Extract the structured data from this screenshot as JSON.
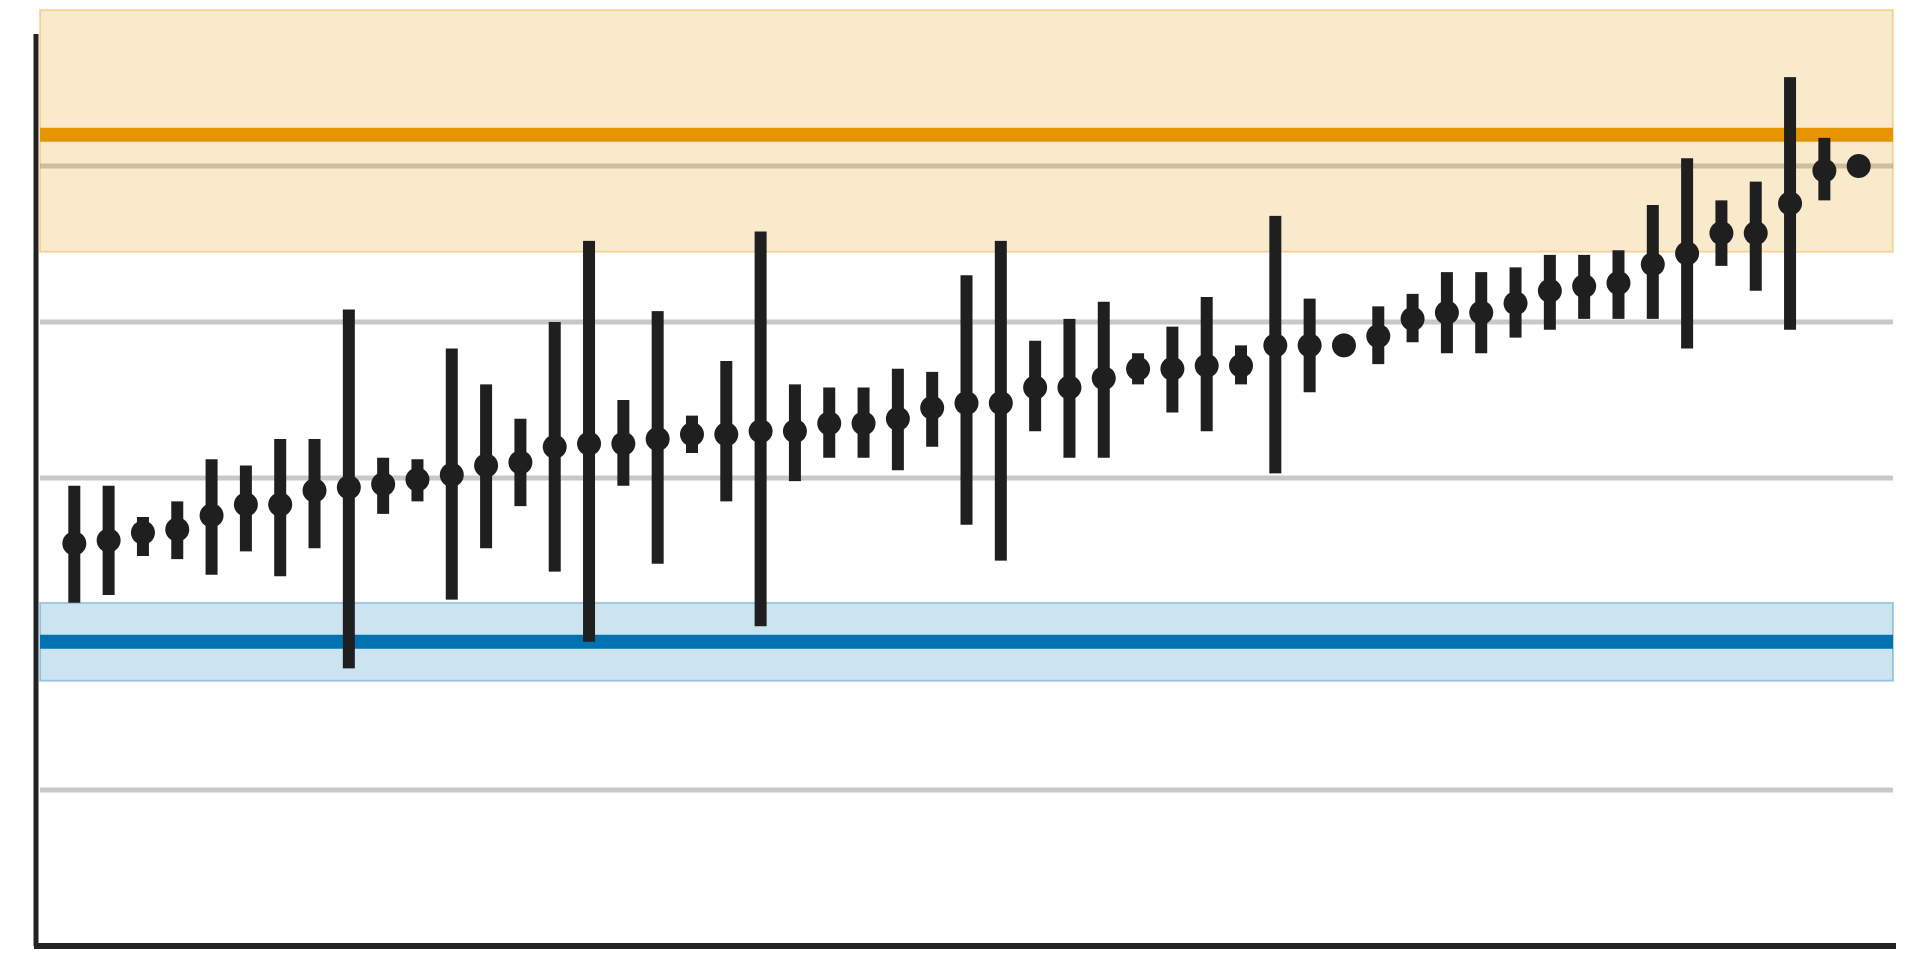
{
  "chart_data": {
    "type": "scatter",
    "title": "",
    "xlabel": "",
    "ylabel": "",
    "xlim": [
      0,
      54
    ],
    "ylim": [
      0,
      600
    ],
    "grid_y": [
      100,
      300,
      400,
      500
    ],
    "grid_on": true,
    "legend": "none",
    "reference_bands": [
      {
        "name": "",
        "color": "#e69500",
        "value": 520,
        "low": 445,
        "high": 600
      },
      {
        "name": "",
        "color": "#0072b2",
        "value": 195,
        "low": 170,
        "high": 220
      }
    ],
    "points": [
      {
        "x": 1,
        "y": 258,
        "low": 220,
        "high": 295
      },
      {
        "x": 2,
        "y": 260,
        "low": 225,
        "high": 295
      },
      {
        "x": 3,
        "y": 265,
        "low": 250,
        "high": 275
      },
      {
        "x": 4,
        "y": 267,
        "low": 248,
        "high": 285
      },
      {
        "x": 5,
        "y": 276,
        "low": 238,
        "high": 312
      },
      {
        "x": 6,
        "y": 283,
        "low": 253,
        "high": 308
      },
      {
        "x": 7,
        "y": 283,
        "low": 237,
        "high": 325
      },
      {
        "x": 8,
        "y": 292,
        "low": 255,
        "high": 325
      },
      {
        "x": 9,
        "y": 294,
        "low": 178,
        "high": 408
      },
      {
        "x": 10,
        "y": 296,
        "low": 277,
        "high": 313
      },
      {
        "x": 11,
        "y": 299,
        "low": 285,
        "high": 312
      },
      {
        "x": 12,
        "y": 302,
        "low": 222,
        "high": 383
      },
      {
        "x": 13,
        "y": 308,
        "low": 255,
        "high": 360
      },
      {
        "x": 14,
        "y": 310,
        "low": 282,
        "high": 338
      },
      {
        "x": 15,
        "y": 320,
        "low": 240,
        "high": 400
      },
      {
        "x": 16,
        "y": 322,
        "low": 195,
        "high": 452
      },
      {
        "x": 17,
        "y": 322,
        "low": 295,
        "high": 350
      },
      {
        "x": 18,
        "y": 325,
        "low": 245,
        "high": 407
      },
      {
        "x": 19,
        "y": 328,
        "low": 316,
        "high": 340
      },
      {
        "x": 20,
        "y": 328,
        "low": 285,
        "high": 375
      },
      {
        "x": 21,
        "y": 330,
        "low": 205,
        "high": 458
      },
      {
        "x": 22,
        "y": 330,
        "low": 298,
        "high": 360
      },
      {
        "x": 23,
        "y": 335,
        "low": 313,
        "high": 358
      },
      {
        "x": 24,
        "y": 335,
        "low": 313,
        "high": 358
      },
      {
        "x": 25,
        "y": 338,
        "low": 305,
        "high": 370
      },
      {
        "x": 26,
        "y": 345,
        "low": 320,
        "high": 368
      },
      {
        "x": 27,
        "y": 348,
        "low": 270,
        "high": 430
      },
      {
        "x": 28,
        "y": 348,
        "low": 247,
        "high": 452
      },
      {
        "x": 29,
        "y": 358,
        "low": 330,
        "high": 388
      },
      {
        "x": 30,
        "y": 358,
        "low": 313,
        "high": 402
      },
      {
        "x": 31,
        "y": 364,
        "low": 313,
        "high": 413
      },
      {
        "x": 32,
        "y": 370,
        "low": 360,
        "high": 380
      },
      {
        "x": 33,
        "y": 370,
        "low": 342,
        "high": 397
      },
      {
        "x": 34,
        "y": 372,
        "low": 330,
        "high": 416
      },
      {
        "x": 35,
        "y": 372,
        "low": 360,
        "high": 385
      },
      {
        "x": 36,
        "y": 385,
        "low": 303,
        "high": 468
      },
      {
        "x": 37,
        "y": 385,
        "low": 355,
        "high": 415
      },
      {
        "x": 38,
        "y": 385
      },
      {
        "x": 39,
        "y": 391,
        "low": 373,
        "high": 410
      },
      {
        "x": 40,
        "y": 402,
        "low": 387,
        "high": 418
      },
      {
        "x": 41,
        "y": 406,
        "low": 380,
        "high": 432
      },
      {
        "x": 42,
        "y": 406,
        "low": 380,
        "high": 432
      },
      {
        "x": 43,
        "y": 412,
        "low": 390,
        "high": 435
      },
      {
        "x": 44,
        "y": 420,
        "low": 395,
        "high": 443
      },
      {
        "x": 45,
        "y": 423,
        "low": 402,
        "high": 443
      },
      {
        "x": 46,
        "y": 425,
        "low": 402,
        "high": 446
      },
      {
        "x": 47,
        "y": 437,
        "low": 402,
        "high": 475
      },
      {
        "x": 48,
        "y": 444,
        "low": 383,
        "high": 505
      },
      {
        "x": 49,
        "y": 457,
        "low": 436,
        "high": 478
      },
      {
        "x": 50,
        "y": 457,
        "low": 420,
        "high": 490
      },
      {
        "x": 51,
        "y": 476,
        "low": 395,
        "high": 557
      },
      {
        "x": 52,
        "y": 497,
        "low": 478,
        "high": 518
      },
      {
        "x": 53,
        "y": 500
      }
    ]
  }
}
